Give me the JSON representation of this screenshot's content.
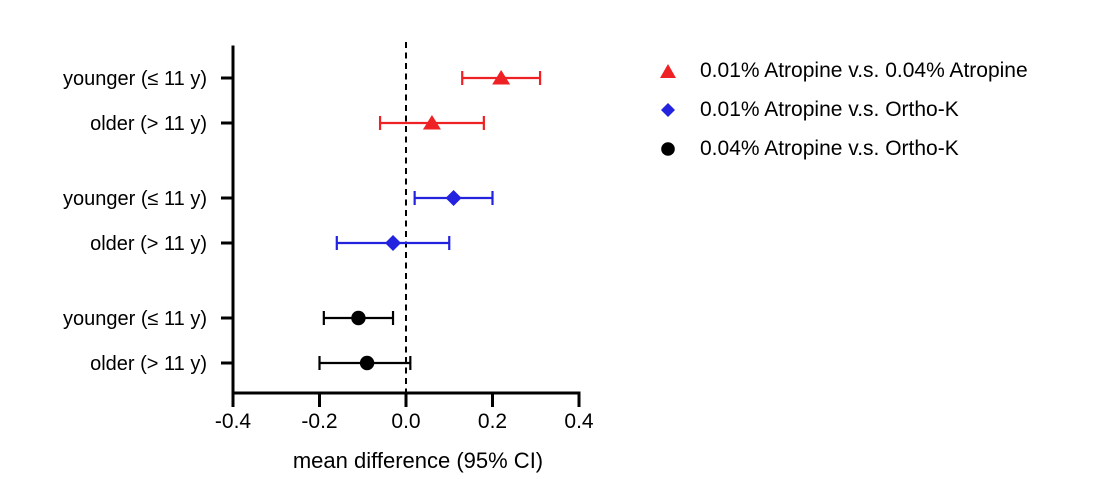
{
  "chart_data": {
    "type": "forest",
    "title": "",
    "xlabel": "mean difference (95% CI)",
    "xlim": [
      -0.4,
      0.4
    ],
    "xticks": [
      -0.4,
      -0.2,
      0.0,
      0.2,
      0.4
    ],
    "xtick_labels": [
      "-0.4",
      "-0.2",
      "0.0",
      "0.2",
      "0.4"
    ],
    "zero_line": 0.0,
    "grid": "off",
    "legend_position": "right",
    "axis_color": "#000000",
    "groups": [
      {
        "name": "0.01% Atropine v.s. 0.04% Atropine",
        "marker": "triangle",
        "color": "#EE2124",
        "points": [
          {
            "label": "younger (≤ 11 y)",
            "mean": 0.22,
            "ci_low": 0.13,
            "ci_high": 0.31
          },
          {
            "label": "older (> 11 y)",
            "mean": 0.06,
            "ci_low": -0.06,
            "ci_high": 0.18
          }
        ]
      },
      {
        "name": "0.01% Atropine v.s. Ortho-K",
        "marker": "diamond",
        "color": "#2222DF",
        "points": [
          {
            "label": "younger (≤ 11 y)",
            "mean": 0.11,
            "ci_low": 0.02,
            "ci_high": 0.2
          },
          {
            "label": "older (> 11 y)",
            "mean": -0.03,
            "ci_low": -0.16,
            "ci_high": 0.1
          }
        ]
      },
      {
        "name": "0.04% Atropine v.s. Ortho-K",
        "marker": "circle",
        "color": "#000000",
        "points": [
          {
            "label": "younger (≤ 11 y)",
            "mean": -0.11,
            "ci_low": -0.19,
            "ci_high": -0.03
          },
          {
            "label": "older (> 11 y)",
            "mean": -0.09,
            "ci_low": -0.2,
            "ci_high": 0.01
          }
        ]
      }
    ]
  }
}
